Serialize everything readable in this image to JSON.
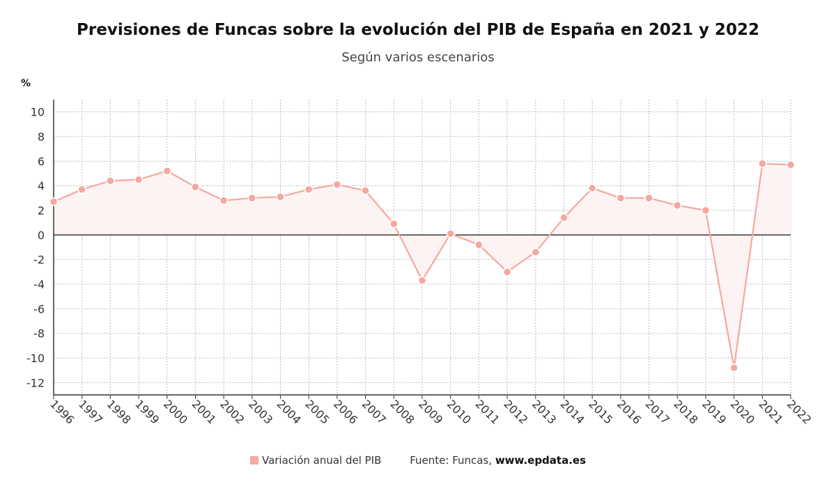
{
  "title": "Previsiones de Funcas sobre la evolución del PIB de España en 2021 y 2022",
  "subtitle": "Según varios escenarios",
  "legend": {
    "series_label": "Variación anual del PIB",
    "source_prefix": "Fuente: Funcas,",
    "source_site": "www.epdata.es"
  },
  "colors": {
    "series": "#f4a8a0",
    "fill": "#fdf3f2",
    "grid": "#bbbbbb",
    "axis": "#333333"
  },
  "chart_data": {
    "type": "line",
    "title": "Previsiones de Funcas sobre la evolución del PIB de España en 2021 y 2022",
    "ylabel": "%",
    "xlabel": "",
    "ylim": [
      -13,
      11
    ],
    "yticks": [
      10,
      8,
      6,
      4,
      2,
      0,
      -2,
      -4,
      -6,
      -8,
      -10,
      -12
    ],
    "grid": true,
    "legend_position": "bottom",
    "categories": [
      "1996",
      "1997",
      "1998",
      "1999",
      "2000",
      "2001",
      "2002",
      "2003",
      "2004",
      "2005",
      "2006",
      "2007",
      "2008",
      "2009",
      "2010",
      "2011",
      "2012",
      "2013",
      "2014",
      "2015",
      "2016",
      "2017",
      "2018",
      "2019",
      "2020",
      "2021",
      "2022"
    ],
    "series": [
      {
        "name": "Variación anual del PIB",
        "values": [
          2.7,
          3.7,
          4.4,
          4.5,
          5.2,
          3.9,
          2.8,
          3.0,
          3.1,
          3.7,
          4.1,
          3.6,
          0.9,
          -3.7,
          0.1,
          -0.8,
          -3.0,
          -1.4,
          1.4,
          3.8,
          3.0,
          3.0,
          2.4,
          2.0,
          -10.8,
          5.8,
          5.7
        ]
      }
    ]
  }
}
